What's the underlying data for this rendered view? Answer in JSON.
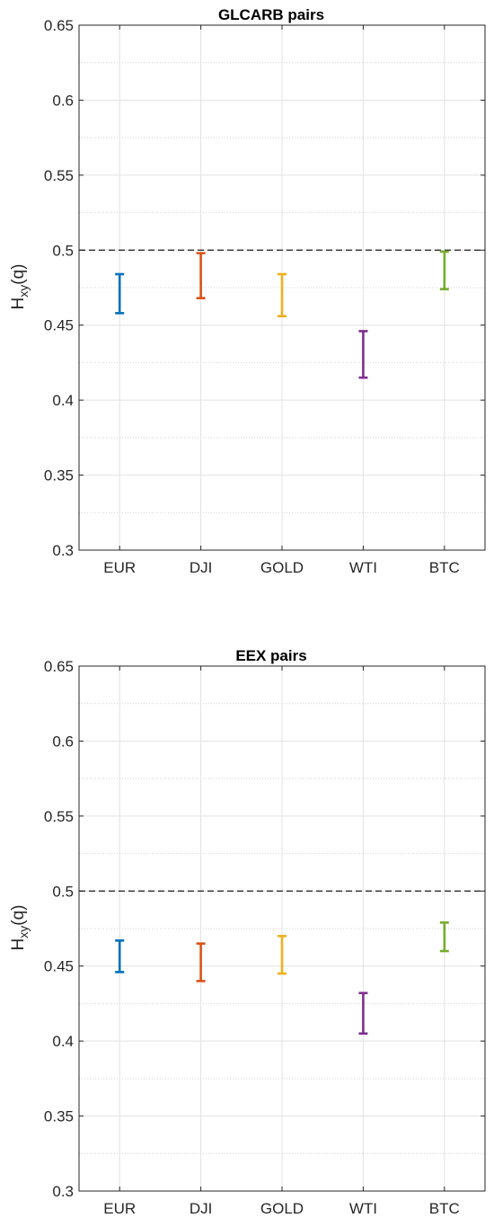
{
  "chart_data": [
    {
      "type": "errorbar",
      "title": "GLCARB pairs",
      "xlabel": "",
      "ylabel": {
        "main": "H",
        "sub": "xy",
        "suffix": "(q)"
      },
      "categories": [
        "EUR",
        "DJI",
        "GOLD",
        "WTI",
        "BTC"
      ],
      "intervals": [
        {
          "category": "EUR",
          "low": 0.458,
          "high": 0.484,
          "color": "#0072BD"
        },
        {
          "category": "DJI",
          "low": 0.468,
          "high": 0.498,
          "color": "#D95319"
        },
        {
          "category": "GOLD",
          "low": 0.456,
          "high": 0.484,
          "color": "#EDB120"
        },
        {
          "category": "WTI",
          "low": 0.415,
          "high": 0.446,
          "color": "#7E2F8E"
        },
        {
          "category": "BTC",
          "low": 0.474,
          "high": 0.499,
          "color": "#77AC30"
        }
      ],
      "ylim": [
        0.3,
        0.65
      ],
      "yticks": [
        "0.3",
        "0.35",
        "0.4",
        "0.45",
        "0.5",
        "0.55",
        "0.6",
        "0.65"
      ],
      "reference_line": 0.5,
      "grid": true
    },
    {
      "type": "errorbar",
      "title": "EEX pairs",
      "xlabel": "",
      "ylabel": {
        "main": "H",
        "sub": "xy",
        "suffix": "(q)"
      },
      "categories": [
        "EUR",
        "DJI",
        "GOLD",
        "WTI",
        "BTC"
      ],
      "intervals": [
        {
          "category": "EUR",
          "low": 0.446,
          "high": 0.467,
          "color": "#0072BD"
        },
        {
          "category": "DJI",
          "low": 0.44,
          "high": 0.465,
          "color": "#D95319"
        },
        {
          "category": "GOLD",
          "low": 0.445,
          "high": 0.47,
          "color": "#EDB120"
        },
        {
          "category": "WTI",
          "low": 0.405,
          "high": 0.432,
          "color": "#7E2F8E"
        },
        {
          "category": "BTC",
          "low": 0.46,
          "high": 0.479,
          "color": "#77AC30"
        }
      ],
      "ylim": [
        0.3,
        0.65
      ],
      "yticks": [
        "0.3",
        "0.35",
        "0.4",
        "0.45",
        "0.5",
        "0.55",
        "0.6",
        "0.65"
      ],
      "reference_line": 0.5,
      "grid": true
    }
  ]
}
